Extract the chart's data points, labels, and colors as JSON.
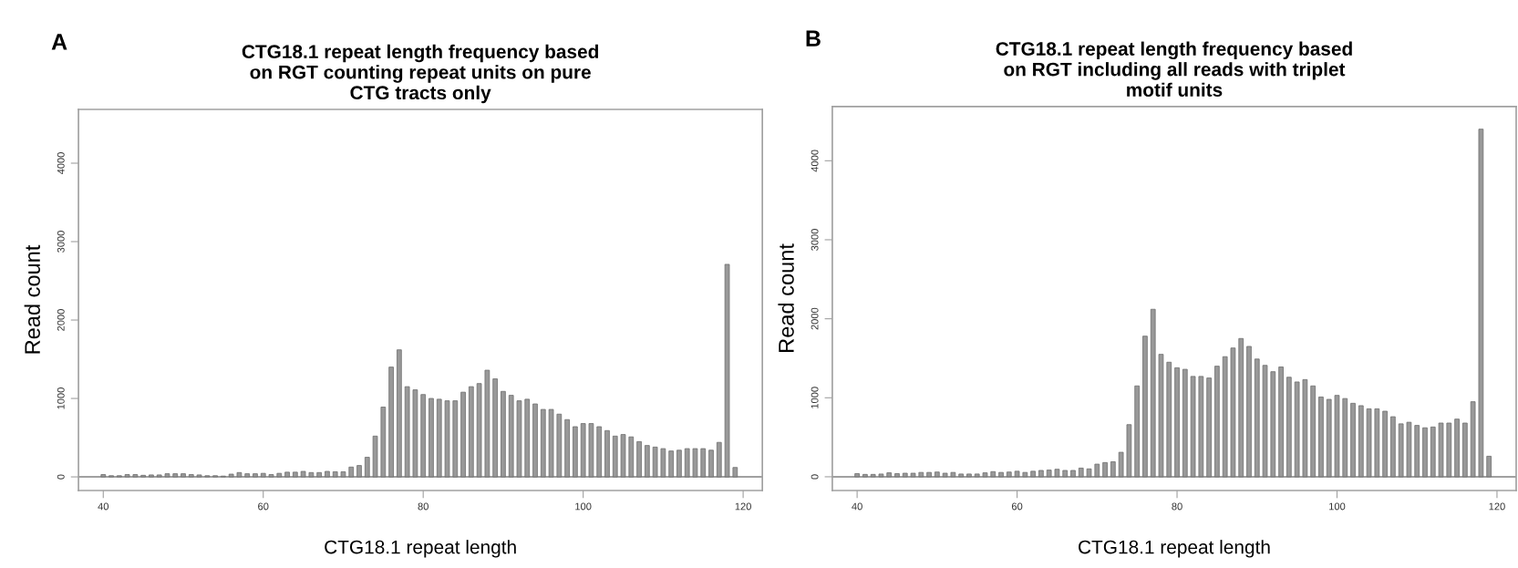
{
  "chart_data": [
    {
      "type": "bar",
      "title": "CTG18.1 repeat length frequency based\non RGT counting repeat units on pure\nCTG tracts only",
      "xlabel": "CTG18.1 repeat length",
      "ylabel": "Read count",
      "annotations": [
        "A"
      ],
      "color": "#999999",
      "x": [
        40,
        41,
        42,
        43,
        44,
        45,
        46,
        47,
        48,
        49,
        50,
        51,
        52,
        53,
        54,
        55,
        56,
        57,
        58,
        59,
        60,
        61,
        62,
        63,
        64,
        65,
        66,
        67,
        68,
        69,
        70,
        71,
        72,
        73,
        74,
        75,
        76,
        77,
        78,
        79,
        80,
        81,
        82,
        83,
        84,
        85,
        86,
        87,
        88,
        89,
        90,
        91,
        92,
        93,
        94,
        95,
        96,
        97,
        98,
        99,
        100,
        101,
        102,
        103,
        104,
        105,
        106,
        107,
        108,
        109,
        110,
        111,
        112,
        113,
        114,
        115,
        116,
        117,
        118,
        119
      ],
      "values": [
        30,
        15,
        15,
        30,
        30,
        20,
        25,
        25,
        40,
        40,
        40,
        30,
        25,
        15,
        15,
        10,
        35,
        55,
        40,
        40,
        45,
        30,
        45,
        60,
        60,
        70,
        55,
        55,
        70,
        65,
        65,
        125,
        145,
        250,
        520,
        890,
        1400,
        1620,
        1150,
        1110,
        1050,
        1000,
        990,
        970,
        970,
        1080,
        1150,
        1190,
        1360,
        1250,
        1090,
        1040,
        970,
        990,
        930,
        860,
        860,
        800,
        730,
        640,
        680,
        680,
        640,
        590,
        520,
        540,
        510,
        450,
        400,
        380,
        360,
        330,
        340,
        360,
        360,
        360,
        340,
        440,
        2710,
        120
      ],
      "xlim": [
        36.9,
        122.4
      ],
      "ylim": [
        -174,
        4686
      ],
      "xticks": [
        40,
        60,
        80,
        100,
        120
      ],
      "yticks": [
        0,
        1000,
        2000,
        3000,
        4000
      ],
      "ref_lines": [
        {
          "axis": "y",
          "value": 0,
          "color": "#808080"
        }
      ]
    },
    {
      "type": "bar",
      "title": "CTG18.1 repeat length frequency based\non RGT including all reads with triplet\nmotif units",
      "xlabel": "CTG18.1 repeat length",
      "ylabel": "Read count",
      "annotations": [
        "B"
      ],
      "color": "#999999",
      "x": [
        40,
        41,
        42,
        43,
        44,
        45,
        46,
        47,
        48,
        49,
        50,
        51,
        52,
        53,
        54,
        55,
        56,
        57,
        58,
        59,
        60,
        61,
        62,
        63,
        64,
        65,
        66,
        67,
        68,
        69,
        70,
        71,
        72,
        73,
        74,
        75,
        76,
        77,
        78,
        79,
        80,
        81,
        82,
        83,
        84,
        85,
        86,
        87,
        88,
        89,
        90,
        91,
        92,
        93,
        94,
        95,
        96,
        97,
        98,
        99,
        100,
        101,
        102,
        103,
        104,
        105,
        106,
        107,
        108,
        109,
        110,
        111,
        112,
        113,
        114,
        115,
        116,
        117,
        118,
        119
      ],
      "values": [
        40,
        30,
        30,
        35,
        50,
        40,
        45,
        45,
        55,
        55,
        60,
        45,
        55,
        35,
        35,
        35,
        50,
        65,
        55,
        60,
        70,
        55,
        70,
        80,
        85,
        95,
        80,
        80,
        110,
        100,
        160,
        180,
        190,
        310,
        660,
        1150,
        1780,
        2120,
        1550,
        1450,
        1380,
        1360,
        1270,
        1270,
        1250,
        1400,
        1520,
        1630,
        1750,
        1650,
        1490,
        1410,
        1330,
        1390,
        1260,
        1200,
        1230,
        1150,
        1010,
        980,
        1030,
        990,
        930,
        900,
        860,
        860,
        830,
        760,
        670,
        690,
        650,
        620,
        630,
        680,
        680,
        730,
        680,
        950,
        4400,
        260
      ],
      "xlim": [
        36.9,
        122.4
      ],
      "ylim": [
        -174,
        4686
      ],
      "xticks": [
        40,
        60,
        80,
        100,
        120
      ],
      "yticks": [
        0,
        1000,
        2000,
        3000,
        4000
      ],
      "ref_lines": [
        {
          "axis": "y",
          "value": 0,
          "color": "#808080"
        }
      ]
    }
  ]
}
